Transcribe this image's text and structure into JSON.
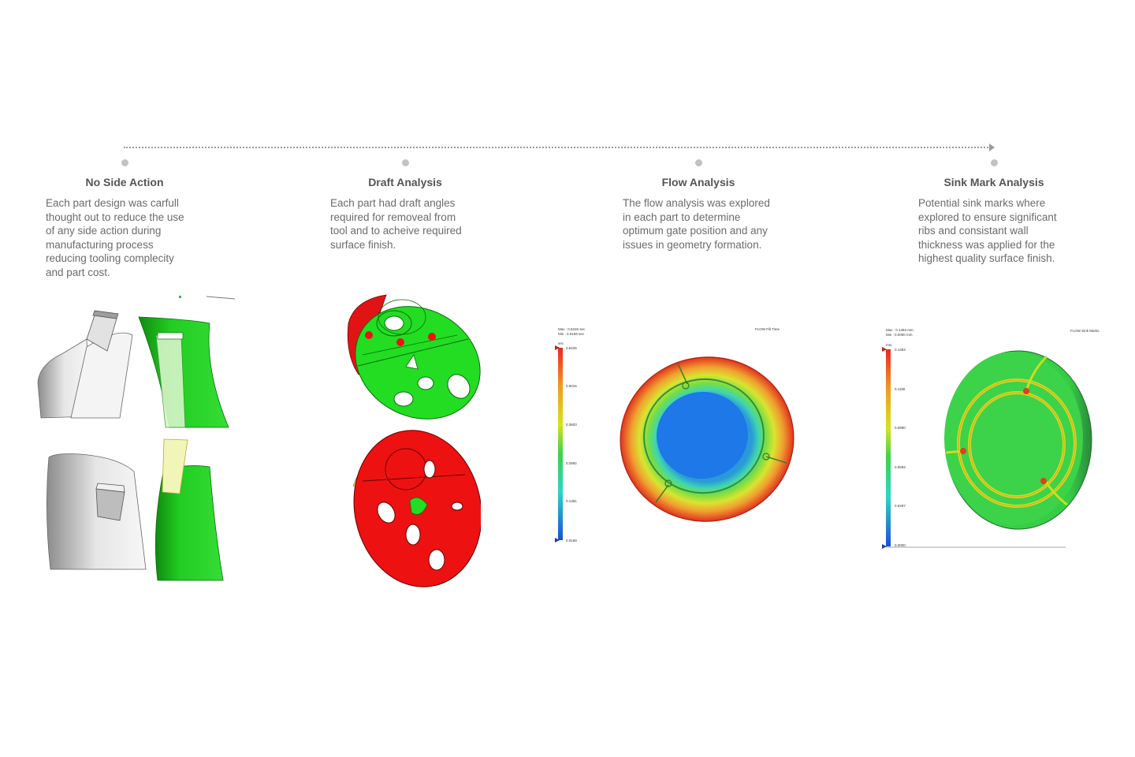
{
  "steps": [
    {
      "title": "No Side Action",
      "description": "Each part design was carfull\nthought out to reduce the use\nof any side action during\nmanufacturing process\nreducing tooling complecity\nand part cost."
    },
    {
      "title": "Draft Analysis",
      "description": "Each part had draft angles\nrequired for removeal from\ntool and to acheive required\nsurface finish."
    },
    {
      "title": "Flow Analysis",
      "description": "The flow analysis was explored\nin each part to determine\noptimum gate position and any\nissues in geometry formation."
    },
    {
      "title": "Sink Mark Analysis",
      "description": "Potential sink marks where\nexplored to ensure significant\nribs and consistant wall\nthickness was applied for the\nhighest quality surface finish."
    }
  ],
  "flow_plot": {
    "max_label": "Max : 0.6226 sec",
    "min_label": "Min : 0.0169 sec",
    "unit": "sec",
    "plot_title": "FLOW Fill Time",
    "legend_values": [
      "0.6226",
      "0.5015",
      "0.3803",
      "0.2592",
      "0.1381",
      "0.0169"
    ]
  },
  "sink_plot": {
    "max_label": "Max : 0.1483 mm",
    "min_label": "Min : 0.0000 mm",
    "unit": "mm",
    "plot_title": "FLOW Sink Marks",
    "legend_values": [
      "0.1483",
      "0.1186",
      "0.0890",
      "0.0593",
      "0.0297",
      "0.0000"
    ]
  },
  "colors": {
    "analysis_green": "#22dd22",
    "analysis_red": "#ee1111",
    "timeline": "#9a9a9a",
    "dot": "#c2c2c2"
  }
}
